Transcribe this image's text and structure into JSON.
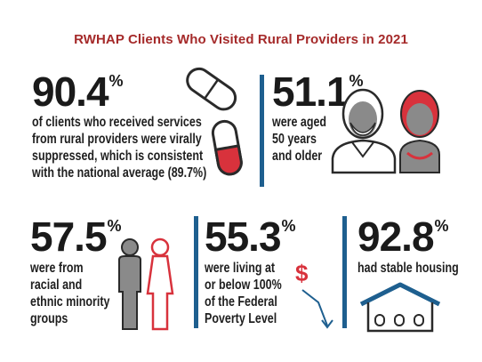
{
  "title": "RWHAP Clients Who Visited Rural Providers in 2021",
  "stats": [
    {
      "value": "90.4",
      "unit": "%",
      "lines": [
        "of clients who received services",
        "from rural providers were virally",
        "suppressed, which is consistent",
        "with the national average (89.7%)"
      ],
      "icon": "pill-capsule-icon"
    },
    {
      "value": "51.1",
      "unit": "%",
      "lines": [
        "were aged",
        "50 years",
        "and older"
      ],
      "icon": "older-adults-icon"
    },
    {
      "value": "57.5",
      "unit": "%",
      "lines": [
        "were from",
        "racial and",
        "ethnic minority",
        "groups"
      ],
      "icon": "man-woman-icon"
    },
    {
      "value": "55.3",
      "unit": "%",
      "lines": [
        "were living at",
        "or below 100%",
        "of the Federal",
        "Poverty Level"
      ],
      "icon": "dollar-down-arrow-icon"
    },
    {
      "value": "92.8",
      "unit": "%",
      "lines": [
        "had stable housing"
      ],
      "icon": "house-icon"
    }
  ],
  "colors": {
    "title": "#a52a2a",
    "accent_red": "#d8323c",
    "divider_blue": "#1e5f8f",
    "figure_gray": "#8a8a8a",
    "text": "#1f1f1f"
  }
}
